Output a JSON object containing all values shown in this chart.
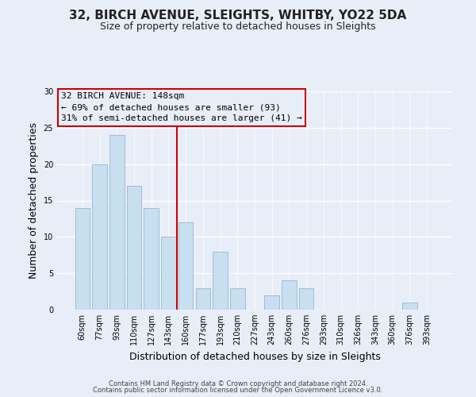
{
  "title": "32, BIRCH AVENUE, SLEIGHTS, WHITBY, YO22 5DA",
  "subtitle": "Size of property relative to detached houses in Sleights",
  "xlabel": "Distribution of detached houses by size in Sleights",
  "ylabel": "Number of detached properties",
  "bar_labels": [
    "60sqm",
    "77sqm",
    "93sqm",
    "110sqm",
    "127sqm",
    "143sqm",
    "160sqm",
    "177sqm",
    "193sqm",
    "210sqm",
    "227sqm",
    "243sqm",
    "260sqm",
    "276sqm",
    "293sqm",
    "310sqm",
    "326sqm",
    "343sqm",
    "360sqm",
    "376sqm",
    "393sqm"
  ],
  "bar_values": [
    14,
    20,
    24,
    17,
    14,
    10,
    12,
    3,
    8,
    3,
    0,
    2,
    4,
    3,
    0,
    0,
    0,
    0,
    0,
    1,
    0
  ],
  "bar_color": "#c8dff0",
  "bar_edge_color": "#a0bcd8",
  "ylim": [
    0,
    30
  ],
  "yticks": [
    0,
    5,
    10,
    15,
    20,
    25,
    30
  ],
  "vline_index": 5.5,
  "vline_color": "#cc0000",
  "annotation_line1": "32 BIRCH AVENUE: 148sqm",
  "annotation_line2": "← 69% of detached houses are smaller (93)",
  "annotation_line3": "31% of semi-detached houses are larger (41) →",
  "footer1": "Contains HM Land Registry data © Crown copyright and database right 2024.",
  "footer2": "Contains public sector information licensed under the Open Government Licence v3.0.",
  "background_color": "#e8eef8",
  "grid_color": "#ffffff",
  "title_fontsize": 11,
  "subtitle_fontsize": 9,
  "axis_label_fontsize": 9,
  "tick_fontsize": 7,
  "annotation_fontsize": 8,
  "footer_fontsize": 6
}
